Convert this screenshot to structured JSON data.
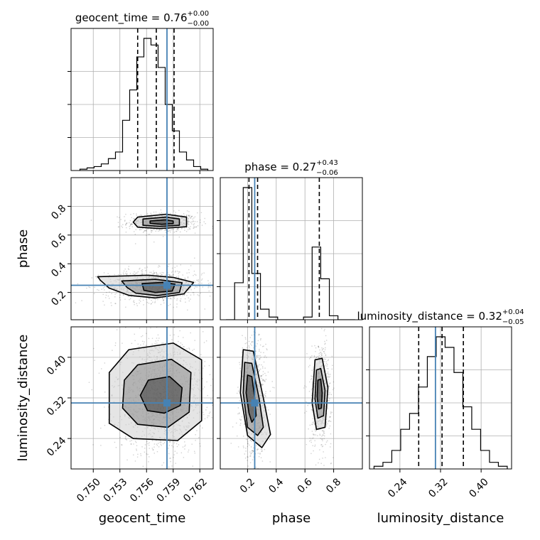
{
  "chart_data": {
    "type": "corner",
    "truth_color": "#4682b4",
    "parameters": [
      {
        "name": "geocent_time",
        "label": "geocent_time",
        "title_name": "geocent_time = ",
        "title_value": "0.76",
        "title_plus": "+0.00",
        "title_minus": "−0.00",
        "range": [
          0.7475,
          0.7635
        ],
        "ticks": [
          0.75,
          0.753,
          0.756,
          0.759,
          0.762
        ],
        "tick_labels": [
          "0.750",
          "0.753",
          "0.756",
          "0.759",
          "0.762"
        ],
        "truth": 0.7583,
        "quantiles": [
          0.755,
          0.7571,
          0.7591
        ],
        "hist_edges": [
          0.7485,
          0.7493,
          0.7501,
          0.7509,
          0.7517,
          0.7525,
          0.7533,
          0.7541,
          0.7549,
          0.7557,
          0.7565,
          0.7573,
          0.7581,
          0.7589,
          0.7597,
          0.7605,
          0.7613,
          0.7621,
          0.7629
        ],
        "hist_counts": [
          0.01,
          0.02,
          0.03,
          0.05,
          0.09,
          0.14,
          0.38,
          0.61,
          0.86,
          1.0,
          0.95,
          0.78,
          0.5,
          0.3,
          0.14,
          0.08,
          0.03,
          0.01
        ]
      },
      {
        "name": "phase",
        "label": "phase",
        "title_name": "phase = ",
        "title_value": "0.27",
        "title_plus": "+0.43",
        "title_minus": "−0.06",
        "range": [
          0.01,
          1.0
        ],
        "ticks": [
          0.2,
          0.4,
          0.6,
          0.8
        ],
        "tick_labels": [
          "0.2",
          "0.4",
          "0.6",
          "0.8"
        ],
        "truth": 0.25,
        "quantiles": [
          0.21,
          0.27,
          0.7
        ],
        "hist_edges": [
          0.05,
          0.11,
          0.17,
          0.23,
          0.29,
          0.35,
          0.41,
          0.47,
          0.53,
          0.59,
          0.65,
          0.71,
          0.77,
          0.83,
          0.89,
          0.95
        ],
        "hist_counts": [
          0.0,
          0.28,
          1.0,
          0.35,
          0.08,
          0.02,
          0.0,
          0.0,
          0.0,
          0.02,
          0.55,
          0.31,
          0.03,
          0.0,
          0.0
        ]
      },
      {
        "name": "luminosity_distance",
        "label": "luminosity_distance",
        "title_name": "luminosity_distance = ",
        "title_value": "0.32",
        "title_plus": "+0.04",
        "title_minus": "−0.05",
        "range": [
          0.18,
          0.46
        ],
        "ticks": [
          0.24,
          0.32,
          0.4
        ],
        "tick_labels": [
          "0.24",
          "0.32",
          "0.40"
        ],
        "truth": 0.31,
        "quantiles": [
          0.277,
          0.323,
          0.365
        ],
        "hist_edges": [
          0.189,
          0.2065,
          0.224,
          0.2415,
          0.259,
          0.2765,
          0.294,
          0.3115,
          0.329,
          0.3465,
          0.364,
          0.3815,
          0.399,
          0.4165,
          0.434,
          0.4515
        ],
        "hist_counts": [
          0.02,
          0.05,
          0.14,
          0.3,
          0.42,
          0.62,
          0.85,
          1.0,
          0.92,
          0.73,
          0.47,
          0.3,
          0.14,
          0.05,
          0.02
        ]
      }
    ],
    "contours": [
      {
        "row": 1,
        "col": 0,
        "levels": [
          [
            [
              0.755,
              0.725
            ],
            [
              0.7582,
              0.745
            ],
            [
              0.7605,
              0.725
            ],
            [
              0.7605,
              0.658
            ],
            [
              0.7575,
              0.645
            ],
            [
              0.755,
              0.655
            ],
            [
              0.7545,
              0.69
            ]
          ],
          [
            [
              0.7556,
              0.712
            ],
            [
              0.7582,
              0.725
            ],
            [
              0.7597,
              0.712
            ],
            [
              0.7597,
              0.668
            ],
            [
              0.7575,
              0.66
            ],
            [
              0.7556,
              0.668
            ]
          ],
          [
            [
              0.7564,
              0.698
            ],
            [
              0.7581,
              0.706
            ],
            [
              0.759,
              0.698
            ],
            [
              0.759,
              0.68
            ],
            [
              0.7577,
              0.675
            ],
            [
              0.7564,
              0.682
            ]
          ],
          [
            [
              0.7505,
              0.31
            ],
            [
              0.7562,
              0.32
            ],
            [
              0.759,
              0.305
            ],
            [
              0.7613,
              0.27
            ],
            [
              0.7602,
              0.19
            ],
            [
              0.757,
              0.162
            ],
            [
              0.754,
              0.18
            ],
            [
              0.7518,
              0.23
            ],
            [
              0.7508,
              0.285
            ]
          ],
          [
            [
              0.7532,
              0.28
            ],
            [
              0.757,
              0.292
            ],
            [
              0.76,
              0.268
            ],
            [
              0.7597,
              0.2
            ],
            [
              0.7572,
              0.178
            ],
            [
              0.7548,
              0.195
            ],
            [
              0.7538,
              0.235
            ]
          ],
          [
            [
              0.7555,
              0.262
            ],
            [
              0.7578,
              0.27
            ],
            [
              0.7592,
              0.258
            ],
            [
              0.7589,
              0.21
            ],
            [
              0.757,
              0.2
            ],
            [
              0.7557,
              0.215
            ]
          ]
        ]
      },
      {
        "row": 2,
        "col": 0,
        "levels": [
          [
            [
              0.754,
              0.415
            ],
            [
              0.759,
              0.428
            ],
            [
              0.7622,
              0.395
            ],
            [
              0.7622,
              0.275
            ],
            [
              0.7595,
              0.236
            ],
            [
              0.7545,
              0.24
            ],
            [
              0.7518,
              0.27
            ],
            [
              0.7518,
              0.37
            ]
          ],
          [
            [
              0.755,
              0.385
            ],
            [
              0.7588,
              0.396
            ],
            [
              0.761,
              0.37
            ],
            [
              0.7608,
              0.292
            ],
            [
              0.7584,
              0.262
            ],
            [
              0.755,
              0.268
            ],
            [
              0.7533,
              0.3
            ],
            [
              0.7535,
              0.355
            ]
          ],
          [
            [
              0.7562,
              0.355
            ],
            [
              0.7586,
              0.362
            ],
            [
              0.76,
              0.34
            ],
            [
              0.7598,
              0.305
            ],
            [
              0.758,
              0.29
            ],
            [
              0.7561,
              0.295
            ],
            [
              0.7553,
              0.325
            ]
          ]
        ]
      },
      {
        "row": 2,
        "col": 1,
        "levels": [
          [
            [
              0.17,
              0.415
            ],
            [
              0.24,
              0.412
            ],
            [
              0.31,
              0.32
            ],
            [
              0.36,
              0.248
            ],
            [
              0.3,
              0.222
            ],
            [
              0.2,
              0.246
            ],
            [
              0.15,
              0.33
            ]
          ],
          [
            [
              0.18,
              0.39
            ],
            [
              0.23,
              0.388
            ],
            [
              0.28,
              0.32
            ],
            [
              0.31,
              0.262
            ],
            [
              0.27,
              0.246
            ],
            [
              0.2,
              0.262
            ],
            [
              0.17,
              0.33
            ]
          ],
          [
            [
              0.2,
              0.365
            ],
            [
              0.23,
              0.362
            ],
            [
              0.25,
              0.32
            ],
            [
              0.26,
              0.285
            ],
            [
              0.23,
              0.272
            ],
            [
              0.21,
              0.29
            ],
            [
              0.19,
              0.33
            ]
          ],
          [
            [
              0.67,
              0.395
            ],
            [
              0.72,
              0.398
            ],
            [
              0.76,
              0.34
            ],
            [
              0.74,
              0.262
            ],
            [
              0.68,
              0.258
            ],
            [
              0.65,
              0.31
            ]
          ],
          [
            [
              0.68,
              0.375
            ],
            [
              0.71,
              0.378
            ],
            [
              0.74,
              0.335
            ],
            [
              0.73,
              0.285
            ],
            [
              0.69,
              0.28
            ],
            [
              0.67,
              0.318
            ]
          ],
          [
            [
              0.69,
              0.355
            ],
            [
              0.71,
              0.357
            ],
            [
              0.72,
              0.33
            ],
            [
              0.715,
              0.3
            ],
            [
              0.695,
              0.298
            ],
            [
              0.685,
              0.322
            ]
          ]
        ]
      }
    ],
    "density": [
      {
        "row": 1,
        "col": 0,
        "blobs": [
          {
            "cx": 0.7578,
            "cy": 0.69,
            "sx": 0.0016,
            "sy": 0.028,
            "n": 650
          },
          {
            "cx": 0.7568,
            "cy": 0.25,
            "sx": 0.0022,
            "sy": 0.045,
            "n": 1000
          }
        ]
      },
      {
        "row": 2,
        "col": 0,
        "blobs": [
          {
            "cx": 0.7575,
            "cy": 0.325,
            "sx": 0.002,
            "sy": 0.045,
            "n": 1500
          }
        ]
      },
      {
        "row": 2,
        "col": 1,
        "blobs": [
          {
            "cx": 0.24,
            "cy": 0.32,
            "sx": 0.035,
            "sy": 0.048,
            "n": 850
          },
          {
            "cx": 0.705,
            "cy": 0.328,
            "sx": 0.03,
            "sy": 0.04,
            "n": 650
          }
        ]
      }
    ],
    "grid": true
  }
}
